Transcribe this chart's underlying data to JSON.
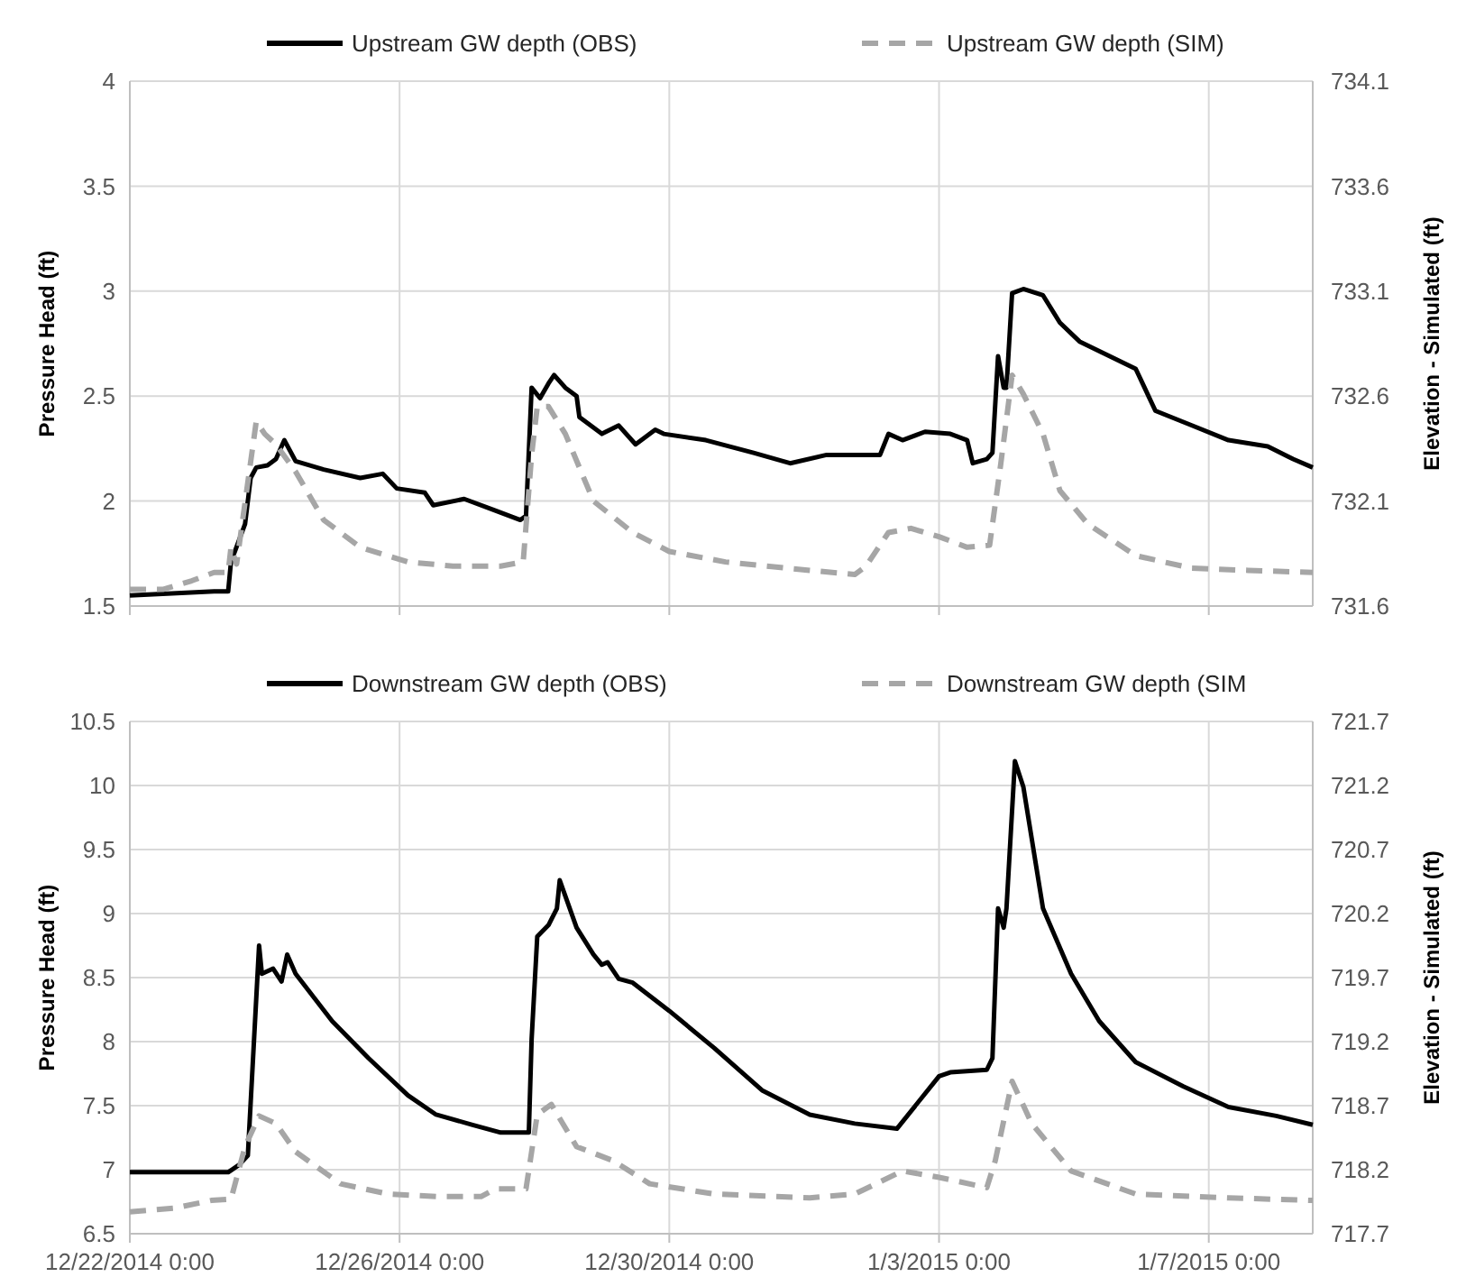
{
  "chart_data": [
    {
      "type": "line",
      "ylabel": "Pressure Head (ft)",
      "y2label": "Elevation - Simulated (ft)",
      "legend": "top",
      "grid": true,
      "tick_labels": "y",
      "xlim": [
        "2014-12-22",
        "2015-01-08T13:00"
      ],
      "xticks": [
        {
          "value": "2014-12-22",
          "label": null
        },
        {
          "value": "2014-12-26",
          "label": null
        },
        {
          "value": "2014-12-30",
          "label": null
        },
        {
          "value": "2015-01-03",
          "label": null
        },
        {
          "value": "2015-01-07",
          "label": null
        }
      ],
      "ylim": [
        1.5,
        4
      ],
      "yticks": [
        1.5,
        2,
        2.5,
        3,
        3.5,
        4
      ],
      "y2lim": [
        731.6,
        734.1
      ],
      "y2ticks": [
        731.6,
        732.1,
        732.6,
        733.1,
        733.6,
        734.1
      ],
      "series": [
        {
          "name": "Upstream GW depth (OBS)",
          "color": "#000000",
          "line_style": "solid",
          "x": [
            "2014-12-22T00:00",
            "2014-12-23T06:00",
            "2014-12-23T11:00",
            "2014-12-23T12:00",
            "2014-12-23T17:00",
            "2014-12-23T19:00",
            "2014-12-23T21:00",
            "2014-12-24T01:00",
            "2014-12-24T04:00",
            "2014-12-24T07:00",
            "2014-12-24T11:00",
            "2014-12-24T21:00",
            "2014-12-25T10:00",
            "2014-12-25T18:00",
            "2014-12-25T23:00",
            "2014-12-26T09:00",
            "2014-12-26T12:00",
            "2014-12-26T23:00",
            "2014-12-27T09:00",
            "2014-12-27T19:00",
            "2014-12-27T21:00",
            "2014-12-27T23:00",
            "2014-12-28T02:00",
            "2014-12-28T05:00",
            "2014-12-28T07:00",
            "2014-12-28T11:00",
            "2014-12-28T15:00",
            "2014-12-28T16:00",
            "2014-12-29T00:00",
            "2014-12-29T06:00",
            "2014-12-29T12:00",
            "2014-12-29T19:00",
            "2014-12-29T22:00",
            "2014-12-30T13:00",
            "2014-12-31T06:00",
            "2014-12-31T19:00",
            "2015-01-01T08:00",
            "2015-01-02T03:00",
            "2015-01-02T06:00",
            "2015-01-02T11:00",
            "2015-01-02T19:00",
            "2015-01-03T04:00",
            "2015-01-03T10:00",
            "2015-01-03T12:00",
            "2015-01-03T17:00",
            "2015-01-03T19:00",
            "2015-01-03T21:00",
            "2015-01-03T23:00",
            "2015-01-04T00:00",
            "2015-01-04T02:00",
            "2015-01-04T06:00",
            "2015-01-04T13:00",
            "2015-01-04T19:00",
            "2015-01-05T02:00",
            "2015-01-05T22:00",
            "2015-01-06T05:00",
            "2015-01-06T18:00",
            "2015-01-07T07:00",
            "2015-01-07T21:00",
            "2015-01-08T06:00",
            "2015-01-08T13:00"
          ],
          "values": [
            1.55,
            1.57,
            1.57,
            1.71,
            1.89,
            2.11,
            2.16,
            2.17,
            2.2,
            2.29,
            2.19,
            2.15,
            2.11,
            2.13,
            2.06,
            2.04,
            1.98,
            2.01,
            1.96,
            1.91,
            1.93,
            2.54,
            2.49,
            2.56,
            2.6,
            2.54,
            2.5,
            2.4,
            2.32,
            2.36,
            2.27,
            2.34,
            2.32,
            2.29,
            2.23,
            2.18,
            2.22,
            2.22,
            2.32,
            2.29,
            2.33,
            2.32,
            2.29,
            2.18,
            2.2,
            2.23,
            2.69,
            2.54,
            2.54,
            2.99,
            3.01,
            2.98,
            2.85,
            2.76,
            2.63,
            2.43,
            2.36,
            2.29,
            2.26,
            2.2,
            2.16
          ]
        },
        {
          "name": "Upstream GW depth (SIM)",
          "color": "#a6a6a6",
          "line_style": "dashed",
          "axis": "y2",
          "x": [
            "2014-12-22T00:00",
            "2014-12-22T12:00",
            "2014-12-22T22:00",
            "2014-12-23T06:00",
            "2014-12-23T11:00",
            "2014-12-23T12:00",
            "2014-12-23T14:00",
            "2014-12-23T18:00",
            "2014-12-23T21:00",
            "2014-12-24T00:00",
            "2014-12-24T04:00",
            "2014-12-24T11:00",
            "2014-12-24T21:00",
            "2014-12-25T10:00",
            "2014-12-26T03:00",
            "2014-12-26T19:00",
            "2014-12-27T12:00",
            "2014-12-27T20:00",
            "2014-12-27T23:00",
            "2014-12-28T01:00",
            "2014-12-28T05:00",
            "2014-12-28T11:00",
            "2014-12-28T21:00",
            "2014-12-29T11:00",
            "2014-12-30T00:00",
            "2014-12-30T20:00",
            "2015-01-01T02:00",
            "2015-01-01T18:00",
            "2015-01-01T22:00",
            "2015-01-02T06:00",
            "2015-01-02T14:00",
            "2015-01-03T00:00",
            "2015-01-03T10:00",
            "2015-01-03T18:00",
            "2015-01-03T22:00",
            "2015-01-04T02:00",
            "2015-01-04T06:00",
            "2015-01-04T13:00",
            "2015-01-04T19:00",
            "2015-01-05T05:00",
            "2015-01-05T22:00",
            "2015-01-06T18:00",
            "2015-01-07T14:00",
            "2015-01-08T13:00"
          ],
          "values": [
            731.68,
            731.68,
            731.72,
            731.76,
            731.76,
            731.88,
            731.8,
            732.19,
            732.48,
            732.42,
            732.37,
            732.24,
            732.01,
            731.88,
            731.81,
            731.79,
            731.79,
            731.81,
            732.32,
            732.55,
            732.55,
            732.42,
            732.1,
            731.95,
            731.86,
            731.81,
            731.77,
            731.75,
            731.79,
            731.95,
            731.97,
            731.93,
            731.88,
            731.89,
            732.28,
            732.7,
            732.61,
            732.42,
            732.15,
            731.99,
            731.84,
            731.78,
            731.77,
            731.76
          ]
        }
      ]
    },
    {
      "type": "line",
      "ylabel": "Pressure Head (ft)",
      "y2label": "Elevation - Simulated (ft)",
      "legend": "top",
      "grid": true,
      "xlim": [
        "2014-12-22",
        "2015-01-08T13:00"
      ],
      "xticks": [
        {
          "value": "2014-12-22",
          "label": "12/22/2014 0:00"
        },
        {
          "value": "2014-12-26",
          "label": "12/26/2014 0:00"
        },
        {
          "value": "2014-12-30",
          "label": "12/30/2014 0:00"
        },
        {
          "value": "2015-01-03",
          "label": "1/3/2015 0:00"
        },
        {
          "value": "2015-01-07",
          "label": "1/7/2015 0:00"
        }
      ],
      "ylim": [
        6.5,
        10.5
      ],
      "yticks": [
        6.5,
        7,
        7.5,
        8,
        8.5,
        9,
        9.5,
        10,
        10.5
      ],
      "y2lim": [
        717.7,
        721.7
      ],
      "y2ticks": [
        717.7,
        718.2,
        718.7,
        719.2,
        719.7,
        720.2,
        720.7,
        721.2,
        721.7
      ],
      "series": [
        {
          "name": "Downstream GW depth (OBS)",
          "color": "#000000",
          "line_style": "solid",
          "x": [
            "2014-12-22T00:00",
            "2014-12-23T11:00",
            "2014-12-23T15:00",
            "2014-12-23T18:00",
            "2014-12-23T22:00",
            "2014-12-23T23:00",
            "2014-12-24T03:00",
            "2014-12-24T06:00",
            "2014-12-24T08:00",
            "2014-12-24T11:00",
            "2014-12-25T00:00",
            "2014-12-25T13:00",
            "2014-12-26T03:00",
            "2014-12-26T13:00",
            "2014-12-27T02:00",
            "2014-12-27T12:00",
            "2014-12-27T22:00",
            "2014-12-27T23:00",
            "2014-12-28T01:00",
            "2014-12-28T05:00",
            "2014-12-28T08:00",
            "2014-12-28T09:00",
            "2014-12-28T15:00",
            "2014-12-28T21:00",
            "2014-12-29T00:00",
            "2014-12-29T02:00",
            "2014-12-29T06:00",
            "2014-12-29T11:00",
            "2014-12-30T00:00",
            "2014-12-30T16:00",
            "2014-12-31T09:00",
            "2015-01-01T02:00",
            "2015-01-01T18:00",
            "2015-01-02T09:00",
            "2015-01-03T00:00",
            "2015-01-03T04:00",
            "2015-01-03T17:00",
            "2015-01-03T19:00",
            "2015-01-03T21:00",
            "2015-01-03T23:00",
            "2015-01-04T00:00",
            "2015-01-04T03:00",
            "2015-01-04T06:00",
            "2015-01-04T13:00",
            "2015-01-04T23:00",
            "2015-01-05T09:00",
            "2015-01-05T22:00",
            "2015-01-06T15:00",
            "2015-01-07T07:00",
            "2015-01-08T00:00",
            "2015-01-08T13:00"
          ],
          "values": [
            6.98,
            6.98,
            7.04,
            7.11,
            8.75,
            8.53,
            8.57,
            8.47,
            8.68,
            8.53,
            8.16,
            7.87,
            7.58,
            7.43,
            7.35,
            7.29,
            7.29,
            8.02,
            8.82,
            8.91,
            9.04,
            9.26,
            8.89,
            8.68,
            8.6,
            8.62,
            8.49,
            8.46,
            8.24,
            7.95,
            7.62,
            7.43,
            7.36,
            7.32,
            7.73,
            7.76,
            7.78,
            7.87,
            9.04,
            8.89,
            9.04,
            10.19,
            9.99,
            9.04,
            8.53,
            8.16,
            7.84,
            7.65,
            7.49,
            7.42,
            7.35
          ]
        },
        {
          "name": "Downstream GW depth (SIM",
          "color": "#a6a6a6",
          "line_style": "dashed",
          "axis": "y2",
          "x": [
            "2014-12-22T00:00",
            "2014-12-22T16:00",
            "2014-12-23T05:00",
            "2014-12-23T12:00",
            "2014-12-23T17:00",
            "2014-12-23T22:00",
            "2014-12-24T04:00",
            "2014-12-24T11:00",
            "2014-12-25T03:00",
            "2014-12-25T20:00",
            "2014-12-26T13:00",
            "2014-12-27T05:00",
            "2014-12-27T10:00",
            "2014-12-27T21:00",
            "2014-12-28T01:00",
            "2014-12-28T06:00",
            "2014-12-28T15:00",
            "2014-12-29T04:00",
            "2014-12-29T17:00",
            "2014-12-30T16:00",
            "2015-01-01T02:00",
            "2015-01-01T18:00",
            "2015-01-02T11:00",
            "2015-01-03T00:00",
            "2015-01-03T17:00",
            "2015-01-03T20:00",
            "2015-01-04T02:00",
            "2015-01-04T09:00",
            "2015-01-04T23:00",
            "2015-01-05T22:00",
            "2015-01-07T07:00",
            "2015-01-08T13:00"
          ],
          "values": [
            717.87,
            717.9,
            717.96,
            717.97,
            718.38,
            718.62,
            718.56,
            718.34,
            718.09,
            718.01,
            717.99,
            717.99,
            718.05,
            718.05,
            718.63,
            718.71,
            718.38,
            718.27,
            718.09,
            718.01,
            717.98,
            718.01,
            718.19,
            718.14,
            718.06,
            718.27,
            718.89,
            718.56,
            718.19,
            718.01,
            717.98,
            717.96
          ]
        }
      ]
    }
  ]
}
